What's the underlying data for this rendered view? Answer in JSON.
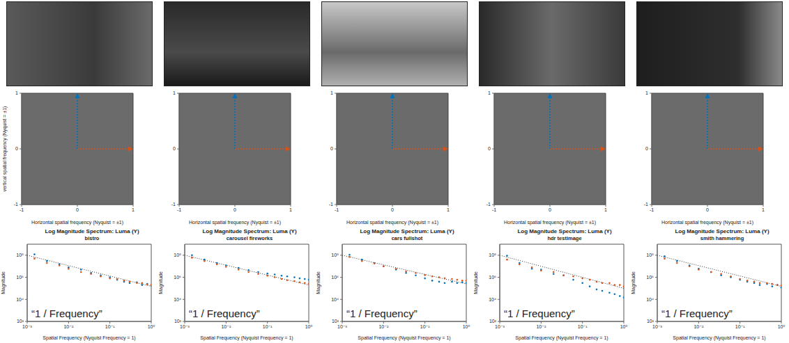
{
  "chart_data": [
    {
      "type": "image",
      "x_label": "Horizontal spatial frequency (Nyquist = ±1)",
      "y_label": "vertical spatial frequency (Nyquist = ±1)",
      "xlim": [
        -1,
        1
      ],
      "ylim": [
        -1,
        1
      ],
      "xticks": [
        -1,
        0,
        1
      ],
      "yticks": [
        -1,
        0,
        1
      ]
    },
    {
      "type": "image",
      "x_label": "Horizontal spatial frequency (Nyquist = ±1)",
      "xlim": [
        -1,
        1
      ],
      "ylim": [
        -1,
        1
      ],
      "xticks": [
        -1,
        0,
        1
      ],
      "yticks": [
        -1,
        0,
        1
      ]
    },
    {
      "type": "image",
      "x_label": "Horizontal spatial frequency (Nyquist = ±1)",
      "xlim": [
        -1,
        1
      ],
      "ylim": [
        -1,
        1
      ],
      "xticks": [
        -1,
        0,
        1
      ],
      "yticks": [
        -1,
        0,
        1
      ]
    },
    {
      "type": "image",
      "x_label": "Horizontal spatial frequency (Nyquist = ±1)",
      "xlim": [
        -1,
        1
      ],
      "ylim": [
        -1,
        1
      ],
      "xticks": [
        -1,
        0,
        1
      ],
      "yticks": [
        -1,
        0,
        1
      ]
    },
    {
      "type": "image",
      "x_label": "Horizontal spatial frequency (Nyquist = ±1)",
      "xlim": [
        -1,
        1
      ],
      "ylim": [
        -1,
        1
      ],
      "xticks": [
        -1,
        0,
        1
      ],
      "yticks": [
        -1,
        0,
        1
      ]
    },
    {
      "type": "scatter",
      "title": "Log Magnitude Spectrum: Luma (Y)",
      "subtitle": "bistro",
      "x_label": "Spatial Frequency (Nyquist Frequency = 1)",
      "y_label": "Magnitude",
      "annotation": "“1 / Frequency”",
      "log": true,
      "xlim": [
        0.001,
        1
      ],
      "ylim": [
        100,
        1000000000
      ],
      "xticks": [
        {
          "value": 0.001,
          "label": "10⁻³"
        },
        {
          "value": 0.01,
          "label": "10⁻²"
        },
        {
          "value": 0.1,
          "label": "10⁻¹"
        },
        {
          "value": 1,
          "label": "10⁰"
        }
      ],
      "yticks": [
        {
          "value": 100,
          "label": "10²"
        },
        {
          "value": 10000,
          "label": "10⁴"
        },
        {
          "value": 1000000,
          "label": "10⁶"
        },
        {
          "value": 100000000,
          "label": "10⁸"
        }
      ],
      "series": [
        {
          "type": "scatter",
          "marker": "point",
          "color": "#0072bd",
          "x": [
            0.0015,
            0.003,
            0.006,
            0.01,
            0.02,
            0.035,
            0.06,
            0.1,
            0.15,
            0.22,
            0.3,
            0.45,
            0.6,
            0.8,
            1
          ],
          "values": [
            120000000.0,
            30000000.0,
            15000000.0,
            8000000.0,
            5000000.0,
            2500000.0,
            1500000.0,
            1000000.0,
            600000.0,
            400000.0,
            300000.0,
            350000.0,
            200000.0,
            250000.0,
            180000.0
          ]
        },
        {
          "type": "scatter",
          "marker": "point",
          "color": "#d95319",
          "x": [
            0.0015,
            0.003,
            0.006,
            0.01,
            0.02,
            0.035,
            0.06,
            0.1,
            0.15,
            0.22,
            0.3,
            0.45,
            0.6,
            0.8,
            1
          ],
          "values": [
            50000000.0,
            20000000.0,
            12000000.0,
            6000000.0,
            3000000.0,
            2000000.0,
            1200000.0,
            800000.0,
            700000.0,
            500000.0,
            400000.0,
            300000.0,
            300000.0,
            220000.0,
            200000.0
          ]
        },
        {
          "type": "line",
          "color": "#333333",
          "line_style": "dotted",
          "x": [
            0.001,
            1
          ],
          "values": [
            100000000.0,
            150000.0
          ]
        }
      ]
    },
    {
      "type": "scatter",
      "title": "Log Magnitude Spectrum: Luma (Y)",
      "subtitle": "carousel fireworks",
      "x_label": "Spatial Frequency (Nyquist Frequency = 1)",
      "y_label": "Magnitude",
      "annotation": "“1 / Frequency”",
      "log": true,
      "xlim": [
        0.001,
        1
      ],
      "ylim": [
        100,
        1000000000
      ],
      "xticks": [
        {
          "value": 0.001,
          "label": "10⁻³"
        },
        {
          "value": 0.01,
          "label": "10⁻²"
        },
        {
          "value": 0.1,
          "label": "10⁻¹"
        },
        {
          "value": 1,
          "label": "10⁰"
        }
      ],
      "yticks": [
        {
          "value": 100,
          "label": "10²"
        },
        {
          "value": 10000,
          "label": "10⁴"
        },
        {
          "value": 1000000,
          "label": "10⁶"
        },
        {
          "value": 100000000,
          "label": "10⁸"
        }
      ],
      "series": [
        {
          "type": "scatter",
          "marker": "point",
          "color": "#0072bd",
          "x": [
            0.0015,
            0.003,
            0.006,
            0.01,
            0.02,
            0.035,
            0.06,
            0.1,
            0.15,
            0.22,
            0.3,
            0.45,
            0.6,
            0.8,
            1
          ],
          "values": [
            100000000.0,
            40000000.0,
            20000000.0,
            12000000.0,
            7000000.0,
            4500000.0,
            3000000.0,
            2200000.0,
            1800000.0,
            1400000.0,
            1200000.0,
            1000000.0,
            800000.0,
            700000.0,
            600000.0
          ]
        },
        {
          "type": "scatter",
          "marker": "point",
          "color": "#d95319",
          "x": [
            0.0015,
            0.003,
            0.006,
            0.01,
            0.02,
            0.035,
            0.06,
            0.1,
            0.15,
            0.22,
            0.3,
            0.45,
            0.6,
            0.8,
            1
          ],
          "values": [
            60000000.0,
            30000000.0,
            15000000.0,
            9000000.0,
            5000000.0,
            3000000.0,
            2000000.0,
            1400000.0,
            1000000.0,
            700000.0,
            550000.0,
            450000.0,
            350000.0,
            300000.0,
            250000.0
          ]
        },
        {
          "type": "line",
          "color": "#333333",
          "line_style": "dotted",
          "x": [
            0.001,
            1
          ],
          "values": [
            100000000.0,
            200000.0
          ]
        }
      ]
    },
    {
      "type": "scatter",
      "title": "Log Magnitude Spectrum: Luma (Y)",
      "subtitle": "cars fullshot",
      "x_label": "Spatial Frequency (Nyquist Frequency = 1)",
      "y_label": "Magnitude",
      "annotation": "“1 / Frequency”",
      "log": true,
      "xlim": [
        0.001,
        1
      ],
      "ylim": [
        100,
        1000000000
      ],
      "xticks": [
        {
          "value": 0.001,
          "label": "10⁻³"
        },
        {
          "value": 0.01,
          "label": "10⁻²"
        },
        {
          "value": 0.1,
          "label": "10⁻¹"
        },
        {
          "value": 1,
          "label": "10⁰"
        }
      ],
      "yticks": [
        {
          "value": 100,
          "label": "10²"
        },
        {
          "value": 10000,
          "label": "10⁴"
        },
        {
          "value": 1000000,
          "label": "10⁶"
        },
        {
          "value": 100000000,
          "label": "10⁸"
        }
      ],
      "series": [
        {
          "type": "scatter",
          "marker": "point",
          "color": "#0072bd",
          "x": [
            0.0015,
            0.003,
            0.006,
            0.01,
            0.02,
            0.035,
            0.06,
            0.1,
            0.15,
            0.22,
            0.3,
            0.45,
            0.6,
            0.8,
            1
          ],
          "values": [
            110000000.0,
            40000000.0,
            20000000.0,
            10000000.0,
            5000000.0,
            2500000.0,
            1500000.0,
            800000.0,
            500000.0,
            400000.0,
            300000.0,
            400000.0,
            300000.0,
            350000.0,
            300000.0
          ]
        },
        {
          "type": "scatter",
          "marker": "point",
          "color": "#d95319",
          "x": [
            0.0015,
            0.003,
            0.006,
            0.01,
            0.02,
            0.035,
            0.06,
            0.1,
            0.15,
            0.22,
            0.3,
            0.45,
            0.6,
            0.8,
            1
          ],
          "values": [
            70000000.0,
            30000000.0,
            18000000.0,
            10000000.0,
            6000000.0,
            3500000.0,
            2500000.0,
            1600000.0,
            1200000.0,
            1000000.0,
            800000.0,
            700000.0,
            600000.0,
            500000.0,
            500000.0
          ]
        },
        {
          "type": "line",
          "color": "#333333",
          "line_style": "dotted",
          "x": [
            0.001,
            1
          ],
          "values": [
            100000000.0,
            250000.0
          ]
        }
      ]
    },
    {
      "type": "scatter",
      "title": "Log Magnitude Spectrum: Luma (Y)",
      "subtitle": "hdr testimage",
      "x_label": "Spatial Frequency (Nyquist Frequency = 1)",
      "y_label": "Magnitude",
      "annotation": "“1 / Frequency”",
      "log": true,
      "xlim": [
        0.001,
        1
      ],
      "ylim": [
        100,
        1000000000
      ],
      "xticks": [
        {
          "value": 0.001,
          "label": "10⁻³"
        },
        {
          "value": 0.01,
          "label": "10⁻²"
        },
        {
          "value": 0.1,
          "label": "10⁻¹"
        },
        {
          "value": 1,
          "label": "10⁰"
        }
      ],
      "yticks": [
        {
          "value": 100,
          "label": "10²"
        },
        {
          "value": 10000,
          "label": "10⁴"
        },
        {
          "value": 1000000,
          "label": "10⁶"
        },
        {
          "value": 100000000,
          "label": "10⁸"
        }
      ],
      "series": [
        {
          "type": "scatter",
          "marker": "point",
          "color": "#0072bd",
          "x": [
            0.0015,
            0.003,
            0.006,
            0.01,
            0.02,
            0.035,
            0.06,
            0.1,
            0.15,
            0.22,
            0.3,
            0.45,
            0.6,
            0.8,
            1
          ],
          "values": [
            90000000.0,
            20000000.0,
            6000000.0,
            5000000.0,
            2000000.0,
            1500000.0,
            600000.0,
            300000.0,
            150000.0,
            80000.0,
            60000.0,
            40000.0,
            30000.0,
            20000.0,
            15000.0
          ]
        },
        {
          "type": "scatter",
          "marker": "point",
          "color": "#d95319",
          "x": [
            0.0015,
            0.003,
            0.006,
            0.01,
            0.02,
            0.035,
            0.06,
            0.1,
            0.15,
            0.22,
            0.3,
            0.45,
            0.6,
            0.8,
            1
          ],
          "values": [
            40000000.0,
            15000000.0,
            8000000.0,
            4000000.0,
            3000000.0,
            1500000.0,
            1200000.0,
            800000.0,
            600000.0,
            400000.0,
            300000.0,
            300000.0,
            200000.0,
            200000.0,
            150000.0
          ]
        },
        {
          "type": "line",
          "color": "#333333",
          "line_style": "dotted",
          "x": [
            0.001,
            1
          ],
          "values": [
            100000000.0,
            100000.0
          ]
        }
      ]
    },
    {
      "type": "scatter",
      "title": "Log Magnitude Spectrum: Luma (Y)",
      "subtitle": "smith hammering",
      "x_label": "Spatial Frequency (Nyquist Frequency = 1)",
      "y_label": "Magnitude",
      "annotation": "“1 / Frequency”",
      "log": true,
      "xlim": [
        0.001,
        1
      ],
      "ylim": [
        100,
        1000000000
      ],
      "xticks": [
        {
          "value": 0.001,
          "label": "10⁻³"
        },
        {
          "value": 0.01,
          "label": "10⁻²"
        },
        {
          "value": 0.1,
          "label": "10⁻¹"
        },
        {
          "value": 1,
          "label": "10⁰"
        }
      ],
      "yticks": [
        {
          "value": 100,
          "label": "10²"
        },
        {
          "value": 10000,
          "label": "10⁴"
        },
        {
          "value": 1000000,
          "label": "10⁶"
        },
        {
          "value": 100000000,
          "label": "10⁸"
        }
      ],
      "series": [
        {
          "type": "scatter",
          "marker": "point",
          "color": "#0072bd",
          "x": [
            0.0015,
            0.003,
            0.006,
            0.01,
            0.02,
            0.035,
            0.06,
            0.1,
            0.15,
            0.22,
            0.3,
            0.45,
            0.6,
            0.8,
            1
          ],
          "values": [
            80000000.0,
            30000000.0,
            12000000.0,
            6000000.0,
            3000000.0,
            1500000.0,
            1000000.0,
            600000.0,
            400000.0,
            300000.0,
            200000.0,
            250000.0,
            150000.0,
            200000.0,
            120000.0
          ]
        },
        {
          "type": "scatter",
          "marker": "point",
          "color": "#d95319",
          "x": [
            0.0015,
            0.003,
            0.006,
            0.01,
            0.02,
            0.035,
            0.06,
            0.1,
            0.15,
            0.22,
            0.3,
            0.45,
            0.6,
            0.8,
            1
          ],
          "values": [
            50000000.0,
            20000000.0,
            10000000.0,
            5000000.0,
            3000000.0,
            2000000.0,
            1200000.0,
            700000.0,
            500000.0,
            400000.0,
            300000.0,
            300000.0,
            250000.0,
            200000.0,
            180000.0
          ]
        },
        {
          "type": "line",
          "color": "#333333",
          "line_style": "dotted",
          "x": [
            0.001,
            1
          ],
          "values": [
            100000000.0,
            150000.0
          ]
        }
      ]
    }
  ]
}
